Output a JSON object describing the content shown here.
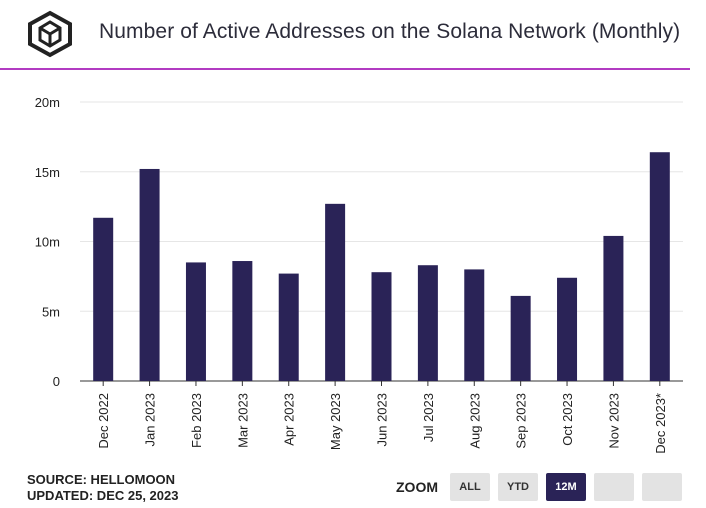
{
  "header": {
    "title": "Number of Active Addresses on the Solana Network (Monthly)",
    "logo_icon": "cube-logo-icon"
  },
  "chart_data": {
    "type": "bar",
    "title": "Number of Active Addresses on the Solana Network (Monthly)",
    "categories": [
      "Dec 2022",
      "Jan 2023",
      "Feb 2023",
      "Mar 2023",
      "Apr 2023",
      "May 2023",
      "Jun 2023",
      "Jul 2023",
      "Aug 2023",
      "Sep 2023",
      "Oct 2023",
      "Nov 2023",
      "Dec 2023*"
    ],
    "values": [
      11.7,
      15.2,
      8.5,
      8.6,
      7.7,
      12.7,
      7.8,
      8.3,
      8.0,
      6.1,
      7.4,
      10.4,
      16.4
    ],
    "unit": "m",
    "ylim": [
      0,
      20
    ],
    "yticks": [
      0,
      5,
      10,
      15,
      20
    ],
    "ytick_labels": [
      "0",
      "5m",
      "10m",
      "15m",
      "20m"
    ],
    "xlabel": "",
    "ylabel": "",
    "grid": true,
    "bar_color": "#2a2357"
  },
  "footer": {
    "source": "SOURCE: HELLOMOON",
    "updated": "UPDATED: DEC 25, 2023"
  },
  "zoom": {
    "label": "ZOOM",
    "buttons": [
      {
        "label": "ALL",
        "active": false
      },
      {
        "label": "YTD",
        "active": false
      },
      {
        "label": "12M",
        "active": true
      },
      {
        "label": "",
        "active": false
      },
      {
        "label": "",
        "active": false
      }
    ]
  }
}
